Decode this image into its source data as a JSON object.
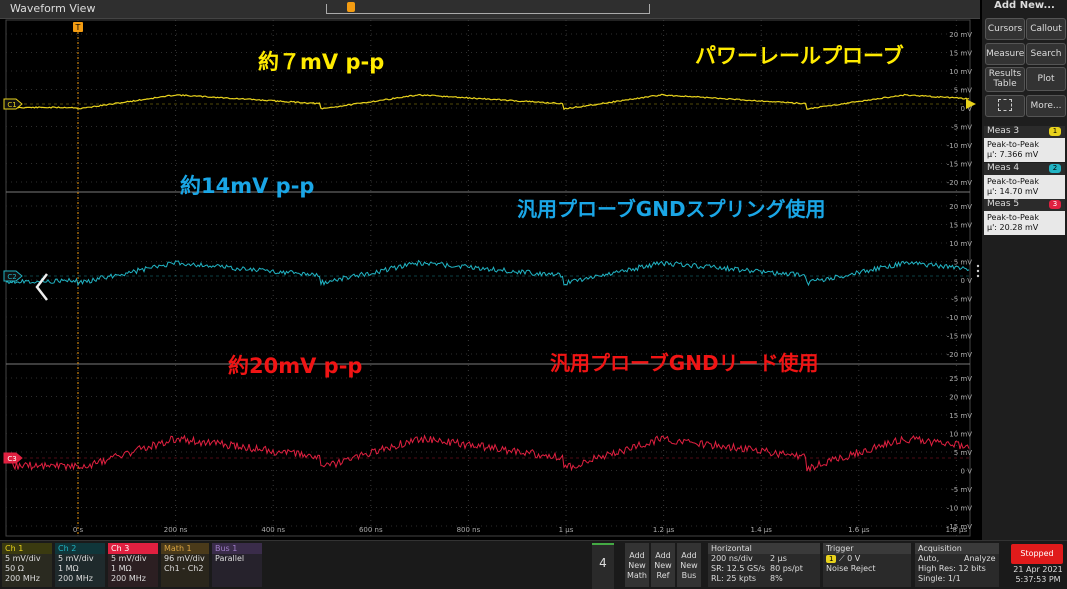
{
  "window_title": "Waveform View",
  "trigger_marker": "T",
  "annotations": {
    "c1_pp": "約７mV p-p",
    "c1_probe": "パワーレールプローブ",
    "c2_pp": "約14mV p-p",
    "c2_probe": "汎用プローブGNDスプリング使用",
    "c3_pp": "約20mV p-p",
    "c3_probe": "汎用プローブGNDリード使用"
  },
  "colors": {
    "c1": "#e8d21c",
    "c2": "#21b4c4",
    "c3": "#e02040",
    "math": "#d9a441",
    "bus": "#a07ec8",
    "text_yellow": "#ffeb00",
    "text_blue": "#1aa6e6",
    "text_red": "#f01414",
    "stopped": "#e01b1b"
  },
  "channels": {
    "c1": "C1",
    "c2": "C2",
    "c3": "C3"
  },
  "c1_ticks": [
    "20 mV",
    "15 mV",
    "10 mV",
    "5 mV",
    "0 V",
    "-5 mV",
    "-10 mV",
    "-15 mV",
    "-20 mV"
  ],
  "c2_ticks": [
    "20 mV",
    "15 mV",
    "10 mV",
    "5 mV",
    "0 V",
    "-5 mV",
    "-10 mV",
    "-15 mV",
    "-20 mV"
  ],
  "c3_ticks": [
    "25 mV",
    "20 mV",
    "15 mV",
    "10 mV",
    "5 mV",
    "0 V",
    "-5 mV",
    "-10 mV",
    "-15 mV"
  ],
  "time_ticks": [
    "0 s",
    "200 ns",
    "400 ns",
    "600 ns",
    "800 ns",
    "1 µs",
    "1.2 µs",
    "1.4 µs",
    "1.6 µs",
    "1.8 µs"
  ],
  "sidebar": {
    "title": "Add New...",
    "buttons": [
      "Cursors",
      "Callout",
      "Measure",
      "Search",
      "Results Table",
      "Plot",
      "",
      "More..."
    ],
    "meas": [
      {
        "name": "Meas 3",
        "badge": "1",
        "label": "Peak-to-Peak",
        "value": "µ': 7.366 mV"
      },
      {
        "name": "Meas 4",
        "badge": "2",
        "label": "Peak-to-Peak",
        "value": "µ': 14.70 mV"
      },
      {
        "name": "Meas 5",
        "badge": "3",
        "label": "Peak-to-Peak",
        "value": "µ': 20.28 mV"
      }
    ]
  },
  "bottom": {
    "ch1": {
      "title": "Ch 1",
      "l1": "5 mV/div",
      "l2": "50 Ω",
      "l3": "200 MHz"
    },
    "ch2": {
      "title": "Ch 2",
      "l1": "5 mV/div",
      "l2": "1 MΩ",
      "l3": "200 MHz"
    },
    "ch3": {
      "title": "Ch 3",
      "l1": "5 mV/div",
      "l2": "1 MΩ",
      "l3": "200 MHz"
    },
    "math1": {
      "title": "Math 1",
      "l1": "96 mV/div",
      "l2": "Ch1 - Ch2"
    },
    "bus1": {
      "title": "Bus 1",
      "l1": "Parallel"
    },
    "count": "4",
    "add_math": "Add New Math",
    "add_ref": "Add New Ref",
    "add_bus": "Add New Bus",
    "horizontal": {
      "title": "Horizontal",
      "a1": "200 ns/div",
      "b1": "2 µs",
      "a2": "SR: 12.5 GS/s",
      "b2": "80 ps/pt",
      "a3": "RL: 25 kpts",
      "b3": "8%"
    },
    "trigger": {
      "title": "Trigger",
      "l1": "0 V",
      "l2": "Noise Reject",
      "badge": "1"
    },
    "acquisition": {
      "title": "Acquisition",
      "l1a": "Auto,",
      "l1b": "Analyze",
      "l2": "High Res: 12 bits",
      "l3": "Single: 1/1"
    },
    "stopped": "Stopped",
    "date": "21 Apr 2021",
    "time": "5:37:53 PM"
  }
}
